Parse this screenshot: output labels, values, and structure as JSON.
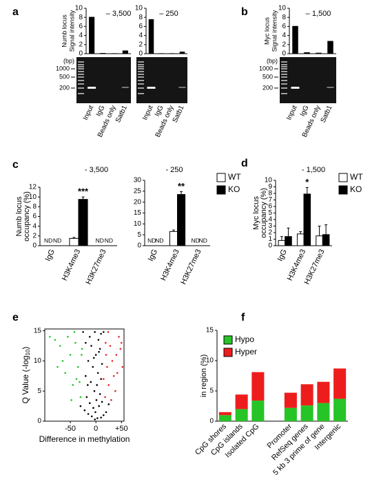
{
  "panel_labels": [
    "a",
    "b",
    "c",
    "d",
    "e",
    "f"
  ],
  "chart_data": [
    {
      "type": "bar",
      "title": "– 3,500",
      "ylabel": [
        "Numb locus",
        "Signal intensity"
      ],
      "categories": [
        "Input",
        "IgG",
        "Beads only",
        "Satb1"
      ],
      "values": [
        8.1,
        0.15,
        0.1,
        0.7
      ],
      "color": "#000000",
      "ylim": [
        0,
        10
      ],
      "yticks": [
        0,
        2,
        4,
        6,
        8,
        10
      ],
      "gel_unit": "(bp)",
      "gel_markers": [
        1000,
        500,
        200
      ]
    },
    {
      "type": "bar",
      "title": "– 250",
      "categories": [
        "Input",
        "IgG",
        "Beads only",
        "Satb1"
      ],
      "values": [
        7.6,
        0.1,
        0.1,
        0.45
      ],
      "color": "#000000",
      "ylim": [
        0,
        10
      ],
      "yticks": [
        0,
        2,
        4,
        6,
        8,
        10
      ]
    },
    {
      "type": "bar",
      "title": "– 1,500",
      "ylabel": [
        "Myc locus",
        "Signal intensity"
      ],
      "categories": [
        "Input",
        "IgG",
        "Beads only",
        "Satb1"
      ],
      "values": [
        6.1,
        0.3,
        0.2,
        2.8
      ],
      "color": "#000000",
      "ylim": [
        0,
        10
      ],
      "yticks": [
        0,
        2,
        4,
        6,
        8,
        10
      ],
      "gel_unit": "(bp)",
      "gel_markers": [
        1000,
        500,
        200
      ]
    },
    {
      "type": "grouped_bar",
      "title": "- 3,500",
      "ylabel": [
        "Numb locus",
        "occupancy (%)"
      ],
      "categories": [
        "IgG",
        "H3K4me3",
        "H3K27me3"
      ],
      "series": [
        {
          "color": "#ffffff",
          "values": [
            null,
            1.5,
            null
          ],
          "errors": [
            null,
            0.2,
            null
          ],
          "value_labels": [
            "ND",
            null,
            "ND"
          ]
        },
        {
          "color": "#000000",
          "values": [
            null,
            9.5,
            null
          ],
          "errors": [
            null,
            0.5,
            null
          ],
          "value_labels": [
            "ND",
            null,
            "ND"
          ]
        }
      ],
      "significance": [
        null,
        "***",
        null
      ],
      "ylim": [
        0,
        12
      ],
      "yticks": [
        0,
        2,
        4,
        6,
        8,
        10,
        12
      ]
    },
    {
      "type": "grouped_bar",
      "title": "- 250",
      "categories": [
        "IgG",
        "H3K4me3",
        "H3K27me3"
      ],
      "series": [
        {
          "name": "WT",
          "color": "#ffffff",
          "values": [
            null,
            6.5,
            null
          ],
          "errors": [
            null,
            0.7,
            null
          ],
          "value_labels": [
            "ND",
            null,
            "ND"
          ]
        },
        {
          "name": "KO",
          "color": "#000000",
          "values": [
            null,
            23.5,
            null
          ],
          "errors": [
            null,
            1.3,
            null
          ],
          "value_labels": [
            "ND",
            null,
            "ND"
          ]
        }
      ],
      "significance": [
        null,
        "**",
        null
      ],
      "ylim": [
        0,
        30
      ],
      "yticks": [
        0,
        5,
        10,
        15,
        20,
        25,
        30
      ],
      "legend": "right"
    },
    {
      "type": "grouped_bar",
      "title": "- 1,500",
      "ylabel": [
        "Myc locus",
        "occupancy (%)"
      ],
      "categories": [
        "IgG",
        "H3K4me3",
        "H3K27me3"
      ],
      "series": [
        {
          "name": "WT",
          "color": "#ffffff",
          "values": [
            0.8,
            1.8,
            1.5
          ],
          "errors": [
            0.6,
            0.35,
            1.5
          ]
        },
        {
          "name": "KO",
          "color": "#000000",
          "values": [
            1.4,
            7.9,
            1.7
          ],
          "errors": [
            1.3,
            1.0,
            1.5
          ]
        }
      ],
      "significance": [
        null,
        "*",
        null
      ],
      "ylim": [
        0,
        10
      ],
      "yticks": [
        0,
        1,
        2,
        3,
        4,
        5,
        6,
        7,
        8,
        9,
        10
      ],
      "legend": "right"
    },
    {
      "type": "scatter",
      "xlabel": "Difference in methylation",
      "ylabel": [
        "Q Value (-log"
      ],
      "ylabel_sub": "10",
      "ylabel_end": ")",
      "xlim": [
        -100,
        55
      ],
      "xticks": [
        -50,
        0,
        {
          "value": 50,
          "label": "+50"
        }
      ],
      "ylim": [
        0,
        15.3
      ],
      "yticks": [
        0,
        5,
        10,
        15
      ],
      "series": [
        {
          "color": "#22c422",
          "x": [
            -30,
            -45,
            -60,
            -35,
            -50,
            -70,
            -40,
            -28,
            -55,
            -80,
            -38,
            -65,
            -32,
            -48,
            -90,
            -27,
            -42,
            -75
          ],
          "y": [
            4,
            6,
            8,
            9,
            11,
            12.5,
            13,
            11,
            14,
            13.5,
            7,
            10,
            6.5,
            3.5,
            14,
            12,
            14.8,
            9
          ]
        },
        {
          "color": "#ee2222",
          "x": [
            18,
            25,
            35,
            22,
            40,
            28,
            50,
            20,
            45,
            32,
            15,
            38,
            24,
            52,
            30,
            42,
            19,
            48
          ],
          "y": [
            4,
            6,
            7.5,
            9,
            11,
            12.5,
            13,
            11,
            14,
            10,
            7,
            5,
            14.8,
            9,
            3.5,
            8,
            13,
            12
          ]
        },
        {
          "color": "#000000",
          "x": [
            -2,
            3,
            -8,
            10,
            -15,
            15,
            -22,
            20,
            -5,
            6,
            -12,
            12,
            -18,
            8,
            -3,
            2,
            -10,
            10,
            -20,
            4,
            -6,
            12,
            -15,
            0,
            8,
            -9,
            -20,
            5,
            -12,
            10,
            -2,
            -25,
            15,
            -30,
            25,
            -1,
            1,
            -4,
            6,
            -16
          ],
          "y": [
            0.3,
            0.5,
            0.8,
            0.6,
            1.2,
            1.0,
            1.8,
            1.5,
            2.2,
            2.5,
            3.0,
            3.2,
            4,
            4.5,
            5,
            6,
            6.5,
            7,
            7.5,
            8,
            9,
            9.5,
            10,
            11,
            12,
            12.5,
            13,
            13.5,
            14,
            14.5,
            14.8,
            14.8,
            14.8,
            2.5,
            2.8,
            1.5,
            3.5,
            10.5,
            11.5,
            6
          ]
        }
      ]
    },
    {
      "type": "stacked_bar",
      "ylabel": [
        "in region (%)"
      ],
      "categories": [
        "CpG shores",
        "CpG islands",
        "Isolated CpG",
        null,
        "Promoter",
        "RefSeq genes",
        "5 kb 3 prime of gene",
        "Intergenic"
      ],
      "series": [
        {
          "name": "Hypo",
          "color": "#27c427",
          "values": [
            1.0,
            2.0,
            3.4,
            null,
            2.2,
            2.6,
            3.0,
            3.7
          ]
        },
        {
          "name": "Hyper",
          "color": "#ee1d1d",
          "values": [
            0.5,
            2.4,
            4.7,
            null,
            2.5,
            3.5,
            3.5,
            5.0
          ]
        }
      ],
      "ylim": [
        0,
        15
      ],
      "yticks": [
        0,
        5,
        10,
        15
      ],
      "legend": "upper left"
    }
  ]
}
